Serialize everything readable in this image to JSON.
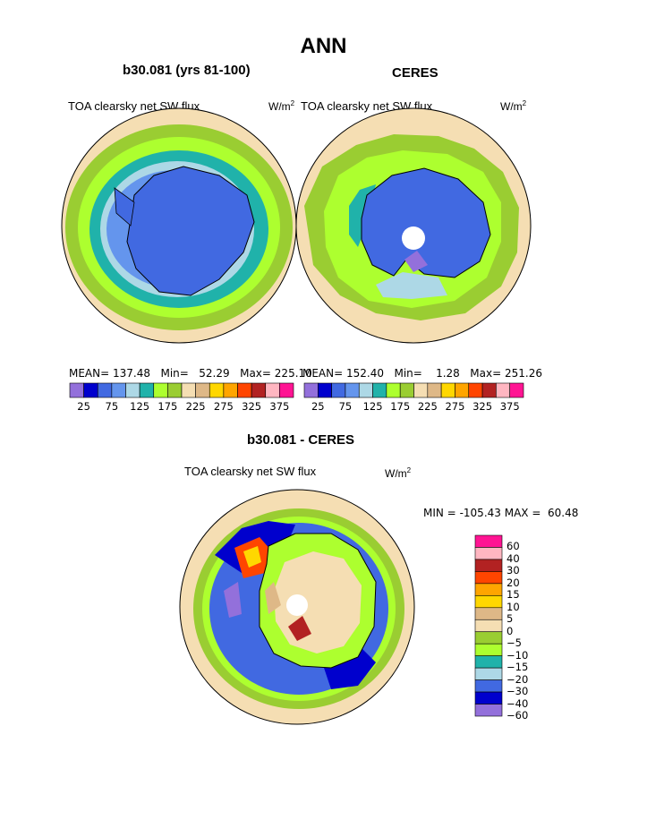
{
  "page": {
    "title": "ANN"
  },
  "panels": {
    "model": {
      "case_title": "b30.081 (yrs 81-100)",
      "variable": "TOA clearsky net SW flux",
      "units_base": "W/m",
      "units_exp": "2",
      "mean_label": "MEAN=",
      "mean": "137.48",
      "min_label": "Min=",
      "min": "52.29",
      "max_label": "Max=",
      "max": "225.10"
    },
    "obs": {
      "case_title": "CERES",
      "variable": "TOA clearsky net SW flux",
      "units_base": "W/m",
      "units_exp": "2",
      "mean_label": "MEAN=",
      "mean": "152.40",
      "min_label": "Min=",
      "min": "1.28",
      "max_label": "Max=",
      "max": "251.26"
    },
    "diff": {
      "case_title": "b30.081 - CERES",
      "variable": "TOA clearsky net SW flux",
      "units_base": "W/m",
      "units_exp": "2",
      "min_label": "MIN =",
      "min": "-105.43",
      "max_label": "MAX =",
      "max": "60.48"
    }
  },
  "colorbars": {
    "abs": {
      "colors": [
        "#9370DB",
        "#0000CD",
        "#4169E1",
        "#6495ED",
        "#ADD8E6",
        "#20B2AA",
        "#ADFF2F",
        "#9ACD32",
        "#F5DEB3",
        "#DEB887",
        "#FFD700",
        "#FFA500",
        "#FF4500",
        "#B22222",
        "#FFB6C1",
        "#FF1493"
      ],
      "tick_labels": [
        "25",
        "75",
        "125",
        "175",
        "225",
        "275",
        "325",
        "375"
      ]
    },
    "diff": {
      "colors_top_to_bottom": [
        "#FF1493",
        "#FFB6C1",
        "#B22222",
        "#FF4500",
        "#FFA500",
        "#FFD700",
        "#DEB887",
        "#F5DEB3",
        "#9ACD32",
        "#ADFF2F",
        "#20B2AA",
        "#ADD8E6",
        "#4169E1",
        "#0000CD",
        "#9370DB"
      ],
      "tick_labels": [
        "60",
        "40",
        "30",
        "20",
        "15",
        "10",
        "5",
        "0",
        "−5",
        "−10",
        "−15",
        "−20",
        "−30",
        "−40",
        "−60"
      ]
    }
  }
}
